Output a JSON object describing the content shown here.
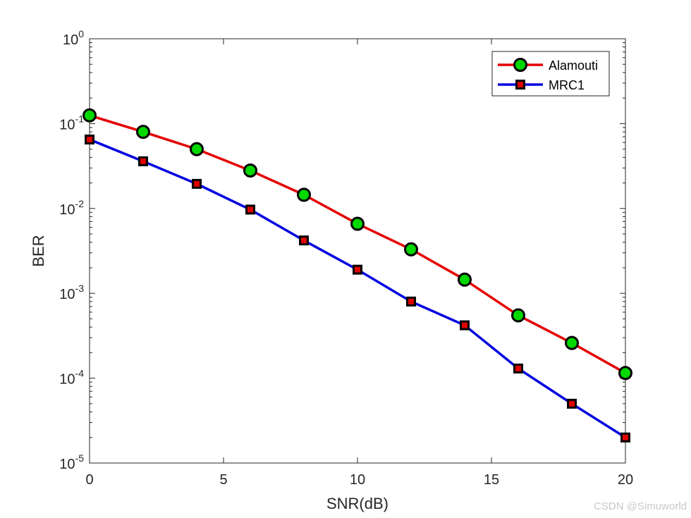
{
  "chart_data": {
    "type": "line",
    "title": "",
    "xlabel": "SNR(dB)",
    "ylabel": "BER",
    "xlim": [
      0,
      20
    ],
    "ylim": [
      1e-05,
      1
    ],
    "yscale": "log",
    "grid": false,
    "legend_position": "top-right",
    "x": [
      0,
      2,
      4,
      6,
      8,
      10,
      12,
      14,
      16,
      18,
      20
    ],
    "x_ticks": [
      0,
      5,
      10,
      15,
      20
    ],
    "x_tick_labels": [
      "0",
      "5",
      "10",
      "15",
      "20"
    ],
    "y_ticks": [
      {
        "base": "10",
        "exp": "0",
        "value": 1
      },
      {
        "base": "10",
        "exp": "-1",
        "value": 0.1
      },
      {
        "base": "10",
        "exp": "-2",
        "value": 0.01
      },
      {
        "base": "10",
        "exp": "-3",
        "value": 0.001
      },
      {
        "base": "10",
        "exp": "-4",
        "value": 0.0001
      },
      {
        "base": "10",
        "exp": "-5",
        "value": 1e-05
      }
    ],
    "series": [
      {
        "name": "Alamouti",
        "color": "#e50000",
        "marker": "circle",
        "marker_fill": "#00d800",
        "values": [
          0.125,
          0.08,
          0.05,
          0.028,
          0.0145,
          0.0066,
          0.0033,
          0.00145,
          0.00055,
          0.00026,
          0.000115
        ]
      },
      {
        "name": "MRC1",
        "color": "#0000e0",
        "marker": "square",
        "marker_fill": "#e00000",
        "values": [
          0.065,
          0.036,
          0.0195,
          0.0097,
          0.0042,
          0.0019,
          0.0008,
          0.00042,
          0.00013,
          5e-05,
          2e-05
        ]
      }
    ]
  },
  "watermark": "CSDN @Simuworld"
}
